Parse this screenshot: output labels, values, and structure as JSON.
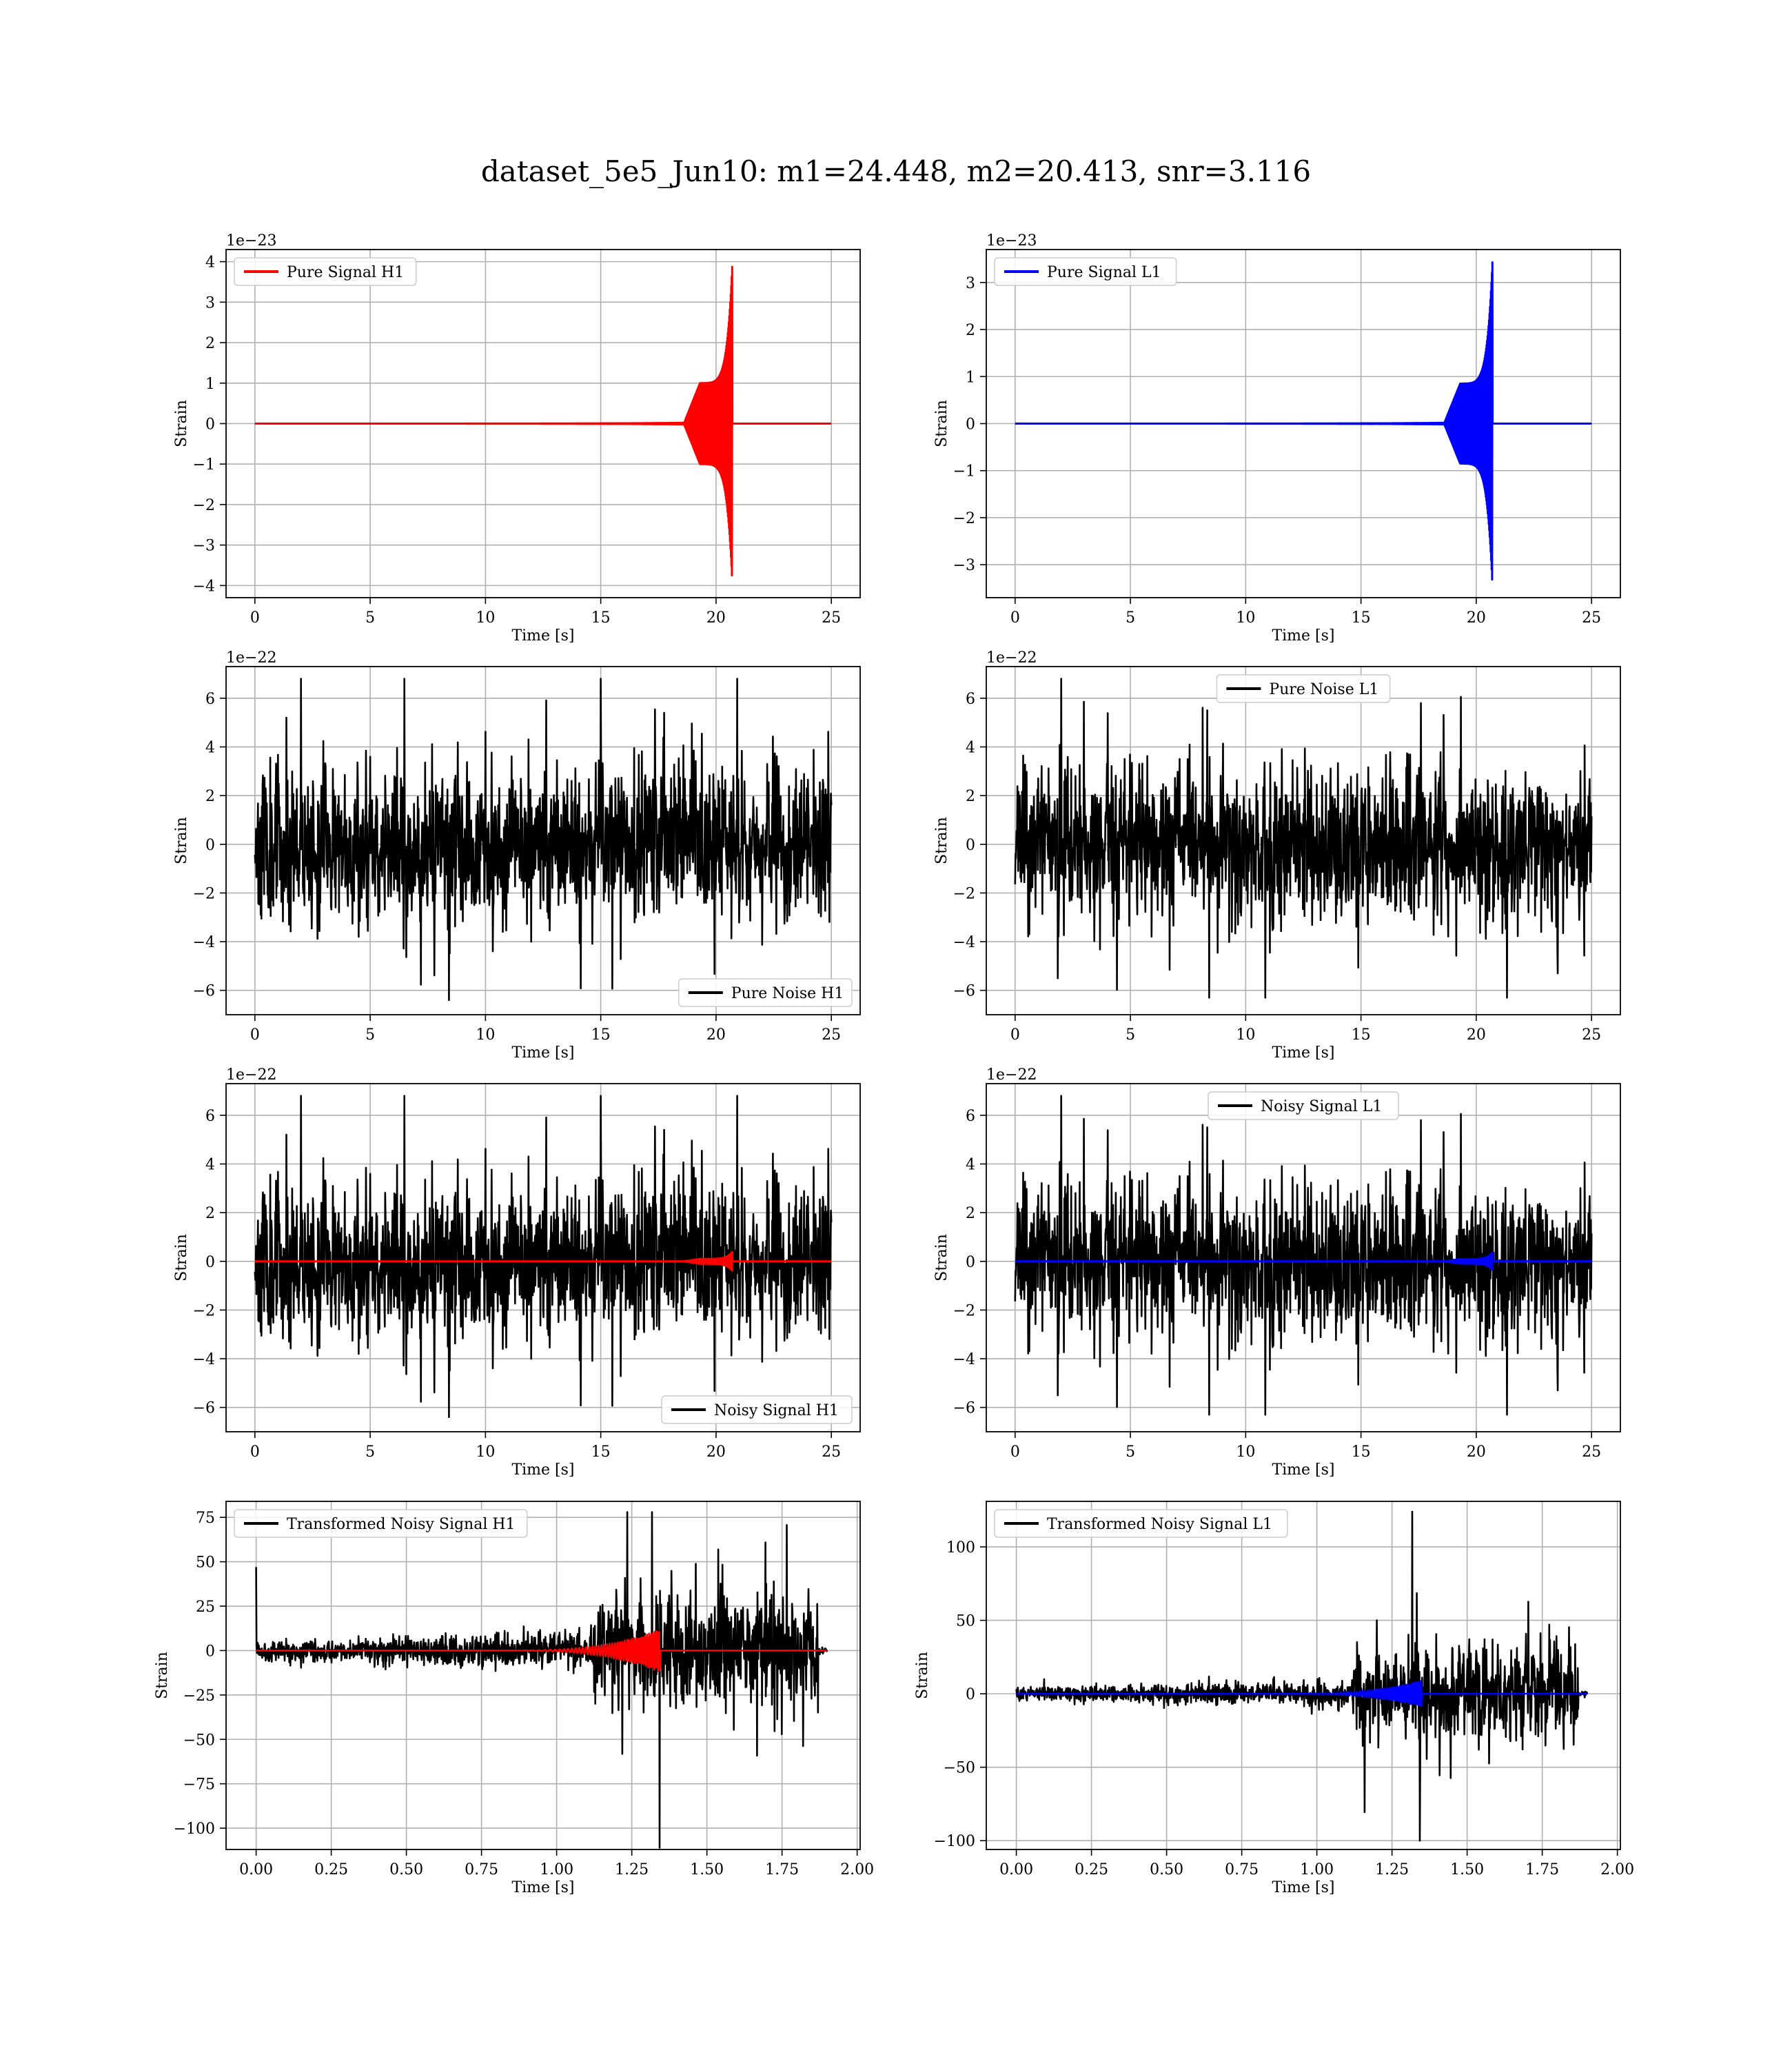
{
  "figure": {
    "title": "dataset_5e5_Jun10: m1=24.448, m2=20.413, snr=3.116"
  },
  "colors": {
    "h1_signal": "#ff0000",
    "l1_signal": "#0000ff",
    "noise": "#000000",
    "grid": "#b0b0b0"
  },
  "chart_data": [
    {
      "id": "pure-signal-h1",
      "type": "line",
      "xlabel": "Time [s]",
      "ylabel": "Strain",
      "offset_text": "1e−23",
      "xlim": [
        -1.25,
        26.25
      ],
      "ylim": [
        -4.3,
        4.3
      ],
      "xticks": [
        0,
        5,
        10,
        15,
        20,
        25
      ],
      "xtick_labels": [
        "0",
        "5",
        "10",
        "15",
        "20",
        "25"
      ],
      "yticks": [
        -4,
        -3,
        -2,
        -1,
        0,
        1,
        2,
        3,
        4
      ],
      "ytick_labels": [
        "−4",
        "−3",
        "−2",
        "−1",
        "0",
        "1",
        "2",
        "3",
        "4"
      ],
      "legend": "upper left",
      "series": [
        {
          "name": "Pure Signal H1",
          "color": "#ff0000",
          "kind": "chirp",
          "x_start": 0,
          "x_end": 25,
          "onset": 18.6,
          "merger": 20.7,
          "peak": 3.9,
          "plateau": 1.0
        }
      ]
    },
    {
      "id": "pure-signal-l1",
      "type": "line",
      "xlabel": "Time [s]",
      "ylabel": "Strain",
      "offset_text": "1e−23",
      "xlim": [
        -1.25,
        26.25
      ],
      "ylim": [
        -3.7,
        3.7
      ],
      "xticks": [
        0,
        5,
        10,
        15,
        20,
        25
      ],
      "xtick_labels": [
        "0",
        "5",
        "10",
        "15",
        "20",
        "25"
      ],
      "yticks": [
        -3,
        -2,
        -1,
        0,
        1,
        2,
        3
      ],
      "ytick_labels": [
        "−3",
        "−2",
        "−1",
        "0",
        "1",
        "2",
        "3"
      ],
      "legend": "upper left",
      "series": [
        {
          "name": "Pure Signal L1",
          "color": "#0000ff",
          "kind": "chirp",
          "x_start": 0,
          "x_end": 25,
          "onset": 18.6,
          "merger": 20.7,
          "peak": 3.45,
          "plateau": 0.85
        }
      ]
    },
    {
      "id": "pure-noise-h1",
      "type": "line",
      "xlabel": "Time [s]",
      "ylabel": "Strain",
      "offset_text": "1e−22",
      "xlim": [
        -1.25,
        26.25
      ],
      "ylim": [
        -7,
        7.3
      ],
      "xticks": [
        0,
        5,
        10,
        15,
        20,
        25
      ],
      "xtick_labels": [
        "0",
        "5",
        "10",
        "15",
        "20",
        "25"
      ],
      "yticks": [
        -6,
        -4,
        -2,
        0,
        2,
        4,
        6
      ],
      "ytick_labels": [
        "−6",
        "−4",
        "−2",
        "0",
        "2",
        "4",
        "6"
      ],
      "legend": "lower right",
      "series": [
        {
          "name": "Pure Noise H1",
          "color": "#000000",
          "kind": "noise",
          "x_start": 0,
          "x_end": 25,
          "band": 2.8,
          "max": 6.8,
          "min": -6.4,
          "seed": 11
        }
      ]
    },
    {
      "id": "pure-noise-l1",
      "type": "line",
      "xlabel": "Time [s]",
      "ylabel": "Strain",
      "offset_text": "1e−22",
      "xlim": [
        -1.25,
        26.25
      ],
      "ylim": [
        -7,
        7.3
      ],
      "xticks": [
        0,
        5,
        10,
        15,
        20,
        25
      ],
      "xtick_labels": [
        "0",
        "5",
        "10",
        "15",
        "20",
        "25"
      ],
      "yticks": [
        -6,
        -4,
        -2,
        0,
        2,
        4,
        6
      ],
      "ytick_labels": [
        "−6",
        "−4",
        "−2",
        "0",
        "2",
        "4",
        "6"
      ],
      "legend": "upper center",
      "series": [
        {
          "name": "Pure Noise L1",
          "color": "#000000",
          "kind": "noise",
          "x_start": 0,
          "x_end": 25,
          "band": 2.7,
          "max": 6.8,
          "min": -6.3,
          "seed": 23
        }
      ]
    },
    {
      "id": "noisy-signal-h1",
      "type": "line",
      "xlabel": "Time [s]",
      "ylabel": "Strain",
      "offset_text": "1e−22",
      "xlim": [
        -1.25,
        26.25
      ],
      "ylim": [
        -7,
        7.3
      ],
      "xticks": [
        0,
        5,
        10,
        15,
        20,
        25
      ],
      "xtick_labels": [
        "0",
        "5",
        "10",
        "15",
        "20",
        "25"
      ],
      "yticks": [
        -6,
        -4,
        -2,
        0,
        2,
        4,
        6
      ],
      "ytick_labels": [
        "−6",
        "−4",
        "−2",
        "0",
        "2",
        "4",
        "6"
      ],
      "legend": "lower right",
      "series": [
        {
          "name": "Noisy Signal H1",
          "color": "#000000",
          "kind": "noise",
          "x_start": 0,
          "x_end": 25,
          "band": 2.8,
          "max": 6.8,
          "min": -6.4,
          "seed": 11
        },
        {
          "name": "",
          "color": "#ff0000",
          "kind": "chirp",
          "x_start": 0,
          "x_end": 25,
          "onset": 18.6,
          "merger": 20.7,
          "peak": 0.39,
          "plateau": 0.1
        }
      ]
    },
    {
      "id": "noisy-signal-l1",
      "type": "line",
      "xlabel": "Time [s]",
      "ylabel": "Strain",
      "offset_text": "1e−22",
      "xlim": [
        -1.25,
        26.25
      ],
      "ylim": [
        -7,
        7.3
      ],
      "xticks": [
        0,
        5,
        10,
        15,
        20,
        25
      ],
      "xtick_labels": [
        "0",
        "5",
        "10",
        "15",
        "20",
        "25"
      ],
      "yticks": [
        -6,
        -4,
        -2,
        0,
        2,
        4,
        6
      ],
      "ytick_labels": [
        "−6",
        "−4",
        "−2",
        "0",
        "2",
        "4",
        "6"
      ],
      "legend": "upper center",
      "series": [
        {
          "name": "Noisy Signal L1",
          "color": "#000000",
          "kind": "noise",
          "x_start": 0,
          "x_end": 25,
          "band": 2.7,
          "max": 6.8,
          "min": -6.3,
          "seed": 23
        },
        {
          "name": "",
          "color": "#0000ff",
          "kind": "chirp",
          "x_start": 0,
          "x_end": 25,
          "onset": 18.6,
          "merger": 20.7,
          "peak": 0.35,
          "plateau": 0.09
        }
      ]
    },
    {
      "id": "transformed-noisy-signal-h1",
      "type": "line",
      "xlabel": "Time [s]",
      "ylabel": "Strain",
      "offset_text": "",
      "xlim": [
        -0.1,
        2.01
      ],
      "ylim": [
        -112,
        84
      ],
      "xticks": [
        0,
        0.25,
        0.5,
        0.75,
        1.0,
        1.25,
        1.5,
        1.75,
        2.0
      ],
      "xtick_labels": [
        "0.00",
        "0.25",
        "0.50",
        "0.75",
        "1.00",
        "1.25",
        "1.50",
        "1.75",
        "2.00"
      ],
      "yticks": [
        -100,
        -75,
        -50,
        -25,
        0,
        25,
        50,
        75
      ],
      "ytick_labels": [
        "−100",
        "−75",
        "−50",
        "−25",
        "0",
        "25",
        "50",
        "75"
      ],
      "legend": "upper left",
      "series": [
        {
          "name": "Transformed Noisy Signal H1",
          "color": "#000000",
          "kind": "whitened",
          "x_start": 0,
          "x_end": 1.9,
          "jump": 1.12,
          "end_noise": 1.87,
          "low_band": 8,
          "high_band": 28,
          "max": 78,
          "min": -111,
          "spike_at_0": 47,
          "seed": 5
        },
        {
          "name": "",
          "color": "#ff0000",
          "kind": "whitened-chirp",
          "x_start": 0,
          "x_end": 1.9,
          "onset": 0.8,
          "merger": 1.345,
          "peak": 12
        }
      ]
    },
    {
      "id": "transformed-noisy-signal-l1",
      "type": "line",
      "xlabel": "Time [s]",
      "ylabel": "Strain",
      "offset_text": "",
      "xlim": [
        -0.1,
        2.01
      ],
      "ylim": [
        -106,
        131
      ],
      "xticks": [
        0,
        0.25,
        0.5,
        0.75,
        1.0,
        1.25,
        1.5,
        1.75,
        2.0
      ],
      "xtick_labels": [
        "0.00",
        "0.25",
        "0.50",
        "0.75",
        "1.00",
        "1.25",
        "1.50",
        "1.75",
        "2.00"
      ],
      "yticks": [
        -100,
        -50,
        0,
        50,
        100
      ],
      "ytick_labels": [
        "−100",
        "−50",
        "0",
        "50",
        "100"
      ],
      "legend": "upper left",
      "series": [
        {
          "name": "Transformed Noisy Signal L1",
          "color": "#000000",
          "kind": "whitened",
          "x_start": 0,
          "x_end": 1.9,
          "jump": 1.12,
          "end_noise": 1.87,
          "low_band": 7,
          "high_band": 30,
          "max": 124,
          "min": -100,
          "spike_at_0": 0,
          "seed": 9
        },
        {
          "name": "",
          "color": "#0000ff",
          "kind": "whitened-chirp",
          "x_start": 0,
          "x_end": 1.9,
          "onset": 0.85,
          "merger": 1.35,
          "peak": 9
        }
      ]
    }
  ]
}
